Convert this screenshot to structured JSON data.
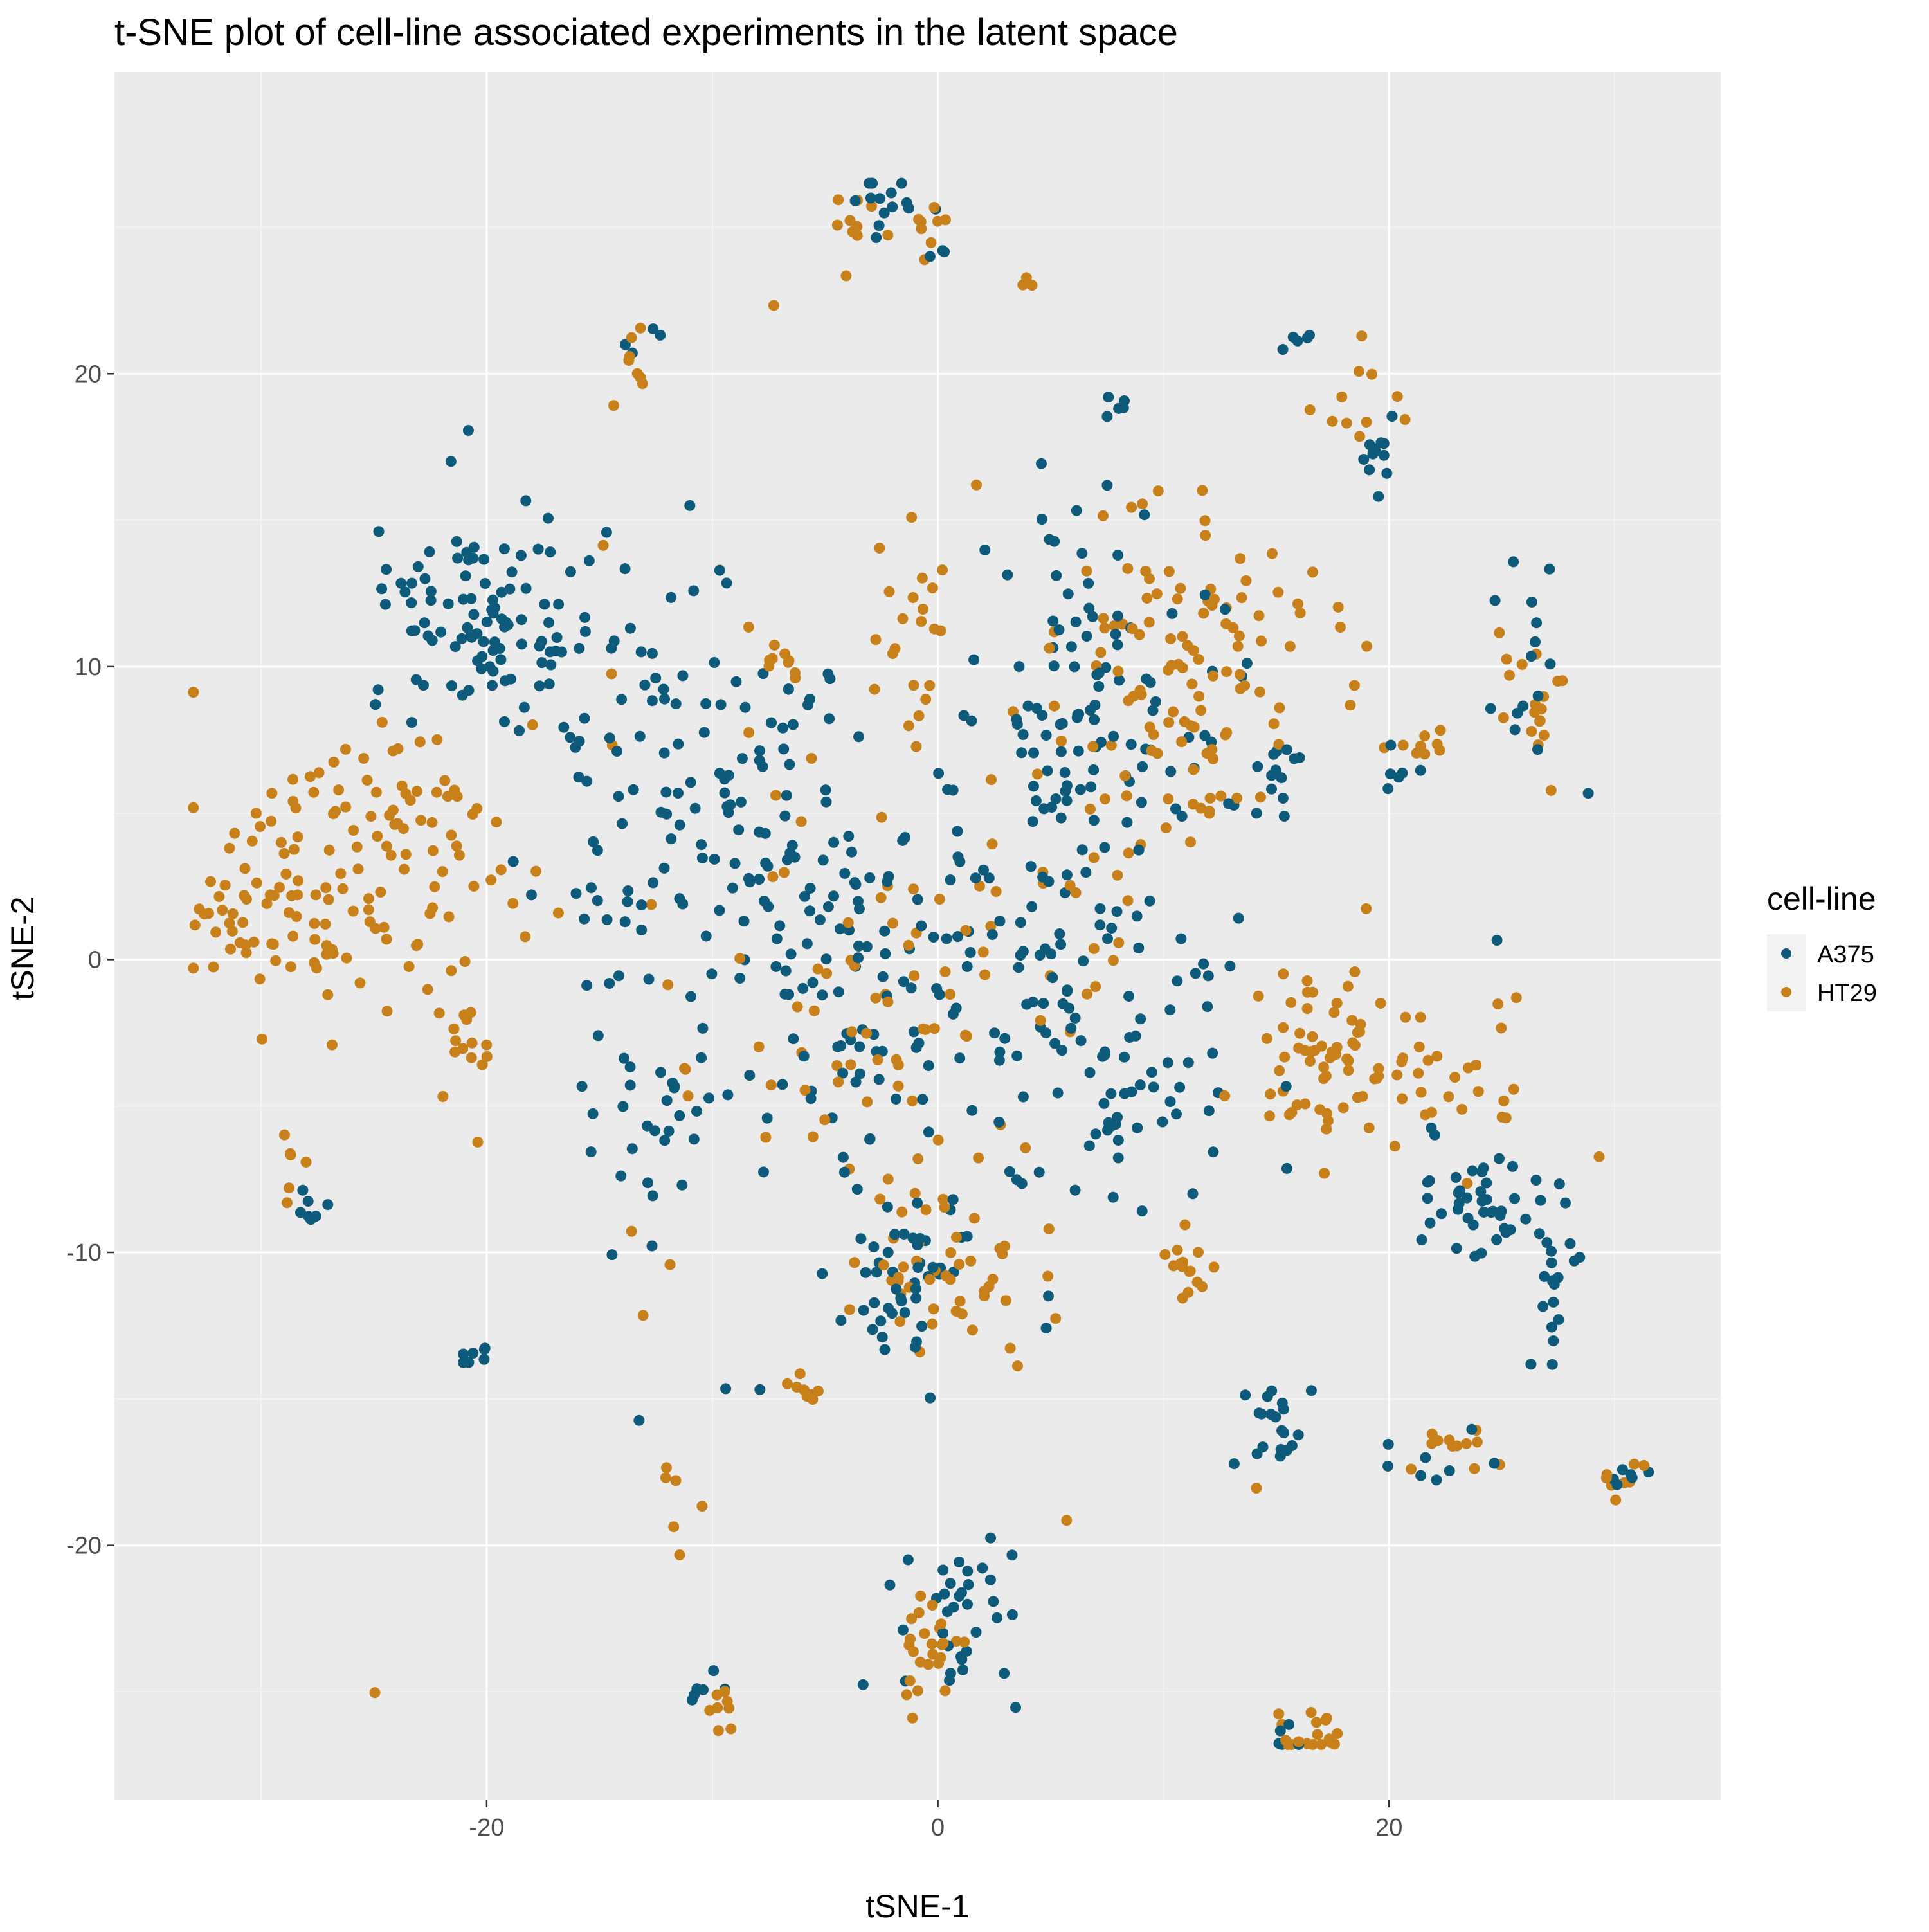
{
  "chart_data": {
    "type": "scatter",
    "title": "t-SNE plot of cell-line associated experiments in the latent space",
    "xlabel": "tSNE-1",
    "ylabel": "tSNE-2",
    "xlim": [
      -36.5,
      34.7
    ],
    "ylim": [
      -28.7,
      30.3
    ],
    "x_ticks": [
      -20,
      0,
      20
    ],
    "x_tick_labels": [
      "-20",
      "0",
      "20"
    ],
    "y_ticks": [
      -20,
      -10,
      0,
      10,
      20
    ],
    "y_tick_labels": [
      "-20",
      "-10",
      "0",
      "10",
      "20"
    ],
    "grid": true,
    "legend": {
      "title": "cell-line",
      "position": "right"
    },
    "series": [
      {
        "name": "A375",
        "color": "#0e5a7b",
        "clusters": [
          {
            "x": -2.3,
            "y": 25.6,
            "sx": 0.9,
            "sy": 0.7,
            "n": 14
          },
          {
            "x": -0.4,
            "y": 24.3,
            "sx": 0.6,
            "sy": 0.6,
            "n": 4
          },
          {
            "x": -21.5,
            "y": 11.8,
            "sx": 1.9,
            "sy": 2.0,
            "n": 70
          },
          {
            "x": -17.5,
            "y": 11.0,
            "sx": 1.6,
            "sy": 2.2,
            "n": 35
          },
          {
            "x": -12.5,
            "y": 9.5,
            "sx": 2.8,
            "sy": 3.5,
            "n": 40
          },
          {
            "x": -6.5,
            "y": 8.8,
            "sx": 0.8,
            "sy": 0.8,
            "n": 10
          },
          {
            "x": -9.5,
            "y": 3.0,
            "sx": 4.0,
            "sy": 2.8,
            "n": 95
          },
          {
            "x": -4.0,
            "y": -2.0,
            "sx": 3.0,
            "sy": 2.4,
            "n": 60
          },
          {
            "x": -13.0,
            "y": -5.5,
            "sx": 1.6,
            "sy": 1.6,
            "n": 25
          },
          {
            "x": 7.0,
            "y": 9.0,
            "sx": 2.6,
            "sy": 3.5,
            "n": 90
          },
          {
            "x": 5.0,
            "y": 2.5,
            "sx": 3.5,
            "sy": 3.0,
            "n": 40
          },
          {
            "x": 14.5,
            "y": 5.5,
            "sx": 0.8,
            "sy": 1.0,
            "n": 15
          },
          {
            "x": 6.0,
            "y": -3.5,
            "sx": 3.6,
            "sy": 2.0,
            "n": 50
          },
          {
            "x": 8.0,
            "y": -6.0,
            "sx": 1.0,
            "sy": 1.0,
            "n": 12
          },
          {
            "x": -1.5,
            "y": -10.5,
            "sx": 1.5,
            "sy": 1.3,
            "n": 40
          },
          {
            "x": 1.0,
            "y": -22.5,
            "sx": 1.3,
            "sy": 1.5,
            "n": 35
          },
          {
            "x": -10.5,
            "y": -25.0,
            "sx": 0.5,
            "sy": 0.3,
            "n": 6
          },
          {
            "x": 14.8,
            "y": -15.8,
            "sx": 0.7,
            "sy": 0.8,
            "n": 20
          },
          {
            "x": 24.0,
            "y": -8.5,
            "sx": 1.3,
            "sy": 1.0,
            "n": 35
          },
          {
            "x": 27.0,
            "y": -10.0,
            "sx": 0.8,
            "sy": 1.5,
            "n": 25
          },
          {
            "x": 26.0,
            "y": 10.0,
            "sx": 1.0,
            "sy": 2.0,
            "n": 15
          },
          {
            "x": 19.5,
            "y": 17.5,
            "sx": 0.4,
            "sy": 0.5,
            "n": 12
          },
          {
            "x": 16.0,
            "y": 21.2,
            "sx": 0.6,
            "sy": 0.2,
            "n": 5
          },
          {
            "x": 8.2,
            "y": 19.0,
            "sx": 0.4,
            "sy": 0.3,
            "n": 5
          },
          {
            "x": 15.5,
            "y": -26.5,
            "sx": 0.4,
            "sy": 0.9,
            "n": 5
          },
          {
            "x": -20.5,
            "y": -13.5,
            "sx": 0.6,
            "sy": 0.4,
            "n": 8
          },
          {
            "x": -27.5,
            "y": -8.4,
            "sx": 0.5,
            "sy": 0.4,
            "n": 7
          },
          {
            "x": 20.5,
            "y": 6.5,
            "sx": 0.5,
            "sy": 0.5,
            "n": 6
          },
          {
            "x": 30.5,
            "y": -17.7,
            "sx": 0.6,
            "sy": 0.2,
            "n": 6
          },
          {
            "x": 22.0,
            "y": -17.3,
            "sx": 1.2,
            "sy": 0.5,
            "n": 8
          },
          {
            "x": -13.3,
            "y": 21.4,
            "sx": 0.6,
            "sy": 0.3,
            "n": 4
          },
          {
            "x": 0.0,
            "y": -1.0,
            "sx": 10.0,
            "sy": 8.0,
            "n": 60
          }
        ]
      },
      {
        "name": "HT29",
        "color": "#c8811a",
        "clusters": [
          {
            "x": -4.0,
            "y": 25.2,
            "sx": 0.6,
            "sy": 0.7,
            "n": 10
          },
          {
            "x": -0.2,
            "y": 24.8,
            "sx": 0.4,
            "sy": 0.5,
            "n": 8
          },
          {
            "x": -27.0,
            "y": 2.0,
            "sx": 3.5,
            "sy": 2.0,
            "n": 110
          },
          {
            "x": -32.0,
            "y": 1.2,
            "sx": 0.6,
            "sy": 0.4,
            "n": 10
          },
          {
            "x": -23.5,
            "y": 5.5,
            "sx": 2.0,
            "sy": 1.2,
            "n": 30
          },
          {
            "x": -20.5,
            "y": -2.0,
            "sx": 0.8,
            "sy": 1.5,
            "n": 15
          },
          {
            "x": -13.5,
            "y": 19.5,
            "sx": 0.4,
            "sy": 1.2,
            "n": 8
          },
          {
            "x": -1.2,
            "y": 11.0,
            "sx": 0.8,
            "sy": 2.0,
            "n": 20
          },
          {
            "x": -7.0,
            "y": 9.8,
            "sx": 0.6,
            "sy": 0.6,
            "n": 8
          },
          {
            "x": 10.0,
            "y": 9.0,
            "sx": 2.5,
            "sy": 3.5,
            "n": 80
          },
          {
            "x": 13.0,
            "y": 10.5,
            "sx": 2.5,
            "sy": 2.5,
            "n": 40
          },
          {
            "x": -2.0,
            "y": -1.5,
            "sx": 3.5,
            "sy": 3.0,
            "n": 50
          },
          {
            "x": 17.0,
            "y": -3.0,
            "sx": 1.4,
            "sy": 1.4,
            "n": 55
          },
          {
            "x": 22.0,
            "y": -4.0,
            "sx": 2.3,
            "sy": 1.2,
            "n": 35
          },
          {
            "x": 0.0,
            "y": -10.5,
            "sx": 2.0,
            "sy": 1.5,
            "n": 45
          },
          {
            "x": -0.3,
            "y": -23.5,
            "sx": 1.0,
            "sy": 1.0,
            "n": 25
          },
          {
            "x": 11.0,
            "y": -10.5,
            "sx": 0.6,
            "sy": 0.6,
            "n": 15
          },
          {
            "x": 16.5,
            "y": -26.5,
            "sx": 0.8,
            "sy": 0.5,
            "n": 18
          },
          {
            "x": 23.0,
            "y": -16.5,
            "sx": 1.4,
            "sy": 0.6,
            "n": 12
          },
          {
            "x": 30.5,
            "y": -17.8,
            "sx": 0.6,
            "sy": 0.3,
            "n": 8
          },
          {
            "x": 26.5,
            "y": 8.5,
            "sx": 0.8,
            "sy": 1.2,
            "n": 18
          },
          {
            "x": 21.5,
            "y": 7.5,
            "sx": 0.6,
            "sy": 0.3,
            "n": 8
          },
          {
            "x": 3.7,
            "y": 23.0,
            "sx": 0.2,
            "sy": 0.1,
            "n": 3
          },
          {
            "x": 18.5,
            "y": 19.0,
            "sx": 1.0,
            "sy": 1.0,
            "n": 10
          },
          {
            "x": -9.5,
            "y": -25.5,
            "sx": 0.4,
            "sy": 0.5,
            "n": 8
          },
          {
            "x": -11.5,
            "y": -19.0,
            "sx": 0.5,
            "sy": 1.0,
            "n": 6
          },
          {
            "x": -28.5,
            "y": -7.0,
            "sx": 0.4,
            "sy": 0.8,
            "n": 6
          },
          {
            "x": -6.0,
            "y": -14.8,
            "sx": 0.6,
            "sy": 0.3,
            "n": 8
          },
          {
            "x": 0.0,
            "y": 0.0,
            "sx": 11.0,
            "sy": 9.0,
            "n": 60
          }
        ]
      }
    ]
  }
}
